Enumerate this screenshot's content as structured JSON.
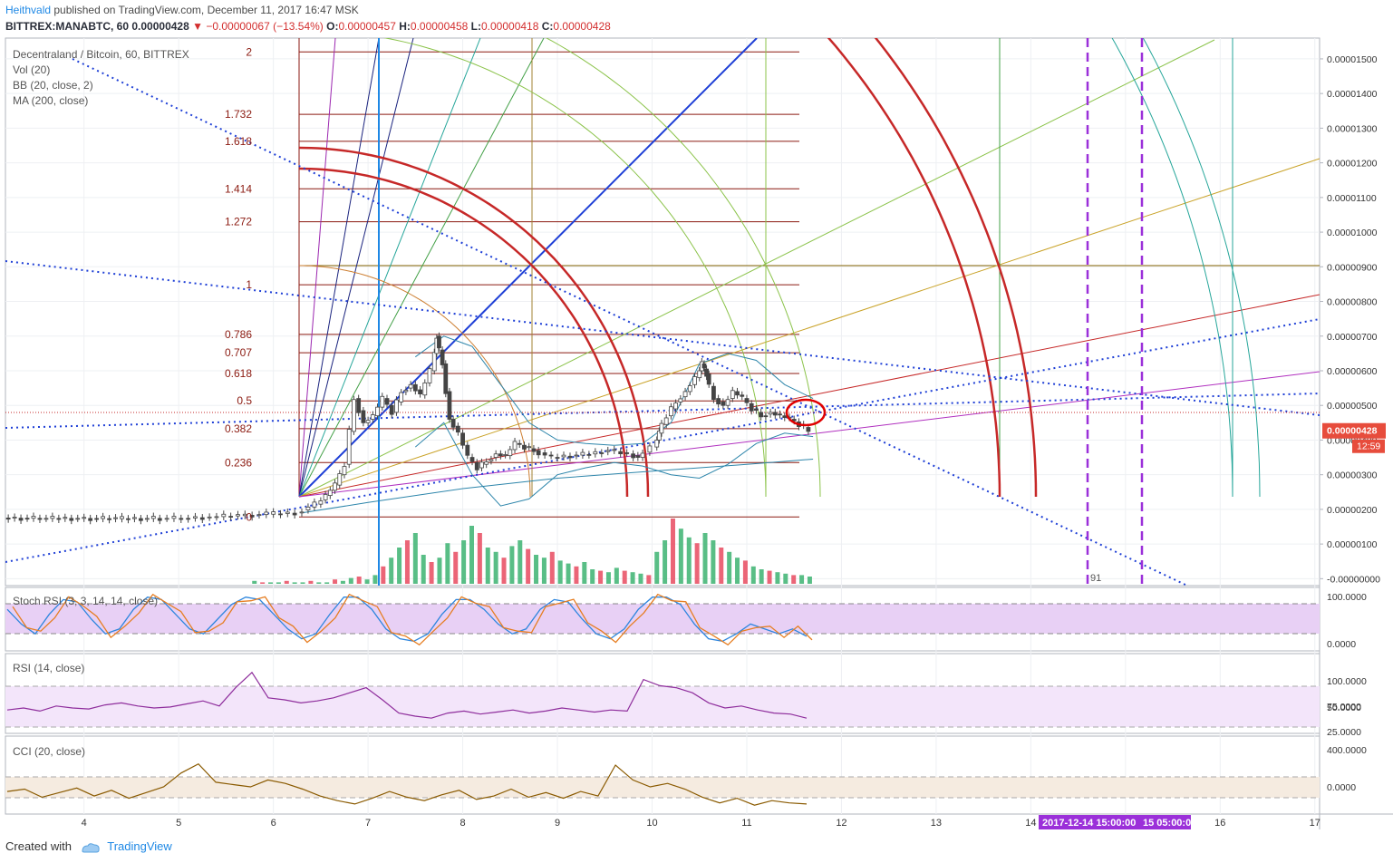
{
  "header": {
    "author": "Heithvald",
    "published": "published on TradingView.com, December 11, 2017 16:47 MSK",
    "symbol": "BITTREX:MANABTC, 60",
    "last": "0.00000428",
    "change": "−0.00000067 (−13.54%)",
    "o_label": "O:",
    "o": "0.00000457",
    "h_label": "H:",
    "h": "0.00000458",
    "l_label": "L:",
    "l": "0.00000418",
    "c_label": "C:",
    "c": "0.00000428"
  },
  "legend": [
    "Decentraland / Bitcoin, 60, BITTREX",
    "Vol (20)",
    "BB (20, close, 2)",
    "MA (200, close)"
  ],
  "price_badge": {
    "value": "0.00000428",
    "countdown": "12:59"
  },
  "fib_levels": [
    {
      "label": "2",
      "value": 1520
    },
    {
      "label": "1.732",
      "value": 1340
    },
    {
      "label": "1.618",
      "value": 1262
    },
    {
      "label": "1.414",
      "value": 1125
    },
    {
      "label": "1.272",
      "value": 1030
    },
    {
      "label": "1",
      "value": 848
    },
    {
      "label": "0.786",
      "value": 705
    },
    {
      "label": "0.707",
      "value": 652
    },
    {
      "label": "0.618",
      "value": 592
    },
    {
      "label": "0.5",
      "value": 513
    },
    {
      "label": "0.382",
      "value": 433
    },
    {
      "label": "0.236",
      "value": 335
    },
    {
      "label": "0",
      "value": 178
    }
  ],
  "panes": {
    "stoch": {
      "label": "Stoch RSI (3, 3, 14, 14, close)",
      "ticks": [
        "100.0000",
        "0.0000"
      ]
    },
    "rsi": {
      "label": "RSI (14, close)",
      "ticks": [
        "100.0000",
        "75.0000",
        "50.0000",
        "25.0000"
      ]
    },
    "cci": {
      "label": "CCI (20, close)",
      "ticks": [
        "400.0000",
        "0.0000"
      ]
    }
  },
  "time_labels": {
    "vline_label": "91",
    "date1": "2017-12-14 15:00:00",
    "date2": "15 05:00:00"
  },
  "footer": {
    "created": "Created with",
    "brand": "TradingView"
  },
  "chart_data": {
    "type": "candlestick",
    "title": "Decentraland / Bitcoin, 60, BITTREX",
    "x_ticks": [
      "4",
      "5",
      "6",
      "7",
      "8",
      "9",
      "10",
      "11",
      "12",
      "13",
      "14",
      "15",
      "16",
      "17"
    ],
    "x_tick_days": [
      4,
      5,
      6,
      7,
      8,
      9,
      10,
      11,
      12,
      13,
      14,
      15,
      16,
      17
    ],
    "y_ticks": [
      "0.00001500",
      "0.00001400",
      "0.00001300",
      "0.00001200",
      "0.00001100",
      "0.00001000",
      "0.00000900",
      "0.00000800",
      "0.00000700",
      "0.00000600",
      "0.00000500",
      "0.00000400",
      "0.00000300",
      "0.00000200",
      "0.00000100",
      "-0.00000000"
    ],
    "y_ticks_value": [
      1500,
      1400,
      1300,
      1200,
      1100,
      1000,
      900,
      800,
      700,
      600,
      500,
      400,
      300,
      200,
      100,
      0
    ],
    "y_unit": "1e-8 BTC",
    "ylim": [
      -20,
      1560
    ],
    "xlim": [
      3.17,
      17.05
    ],
    "price_path": [
      [
        3.2,
        175
      ],
      [
        3.6,
        174
      ],
      [
        4.0,
        174
      ],
      [
        4.4,
        173
      ],
      [
        4.8,
        174
      ],
      [
        5.1,
        174
      ],
      [
        5.4,
        178
      ],
      [
        5.7,
        182
      ],
      [
        6.0,
        186
      ],
      [
        6.3,
        190
      ],
      [
        6.5,
        215
      ],
      [
        6.6,
        240
      ],
      [
        6.7,
        270
      ],
      [
        6.8,
        330
      ],
      [
        6.9,
        520
      ],
      [
        7.0,
        450
      ],
      [
        7.1,
        470
      ],
      [
        7.2,
        520
      ],
      [
        7.3,
        480
      ],
      [
        7.4,
        540
      ],
      [
        7.5,
        560
      ],
      [
        7.6,
        530
      ],
      [
        7.7,
        600
      ],
      [
        7.75,
        700
      ],
      [
        7.82,
        620
      ],
      [
        7.9,
        460
      ],
      [
        8.0,
        420
      ],
      [
        8.1,
        350
      ],
      [
        8.2,
        320
      ],
      [
        8.3,
        340
      ],
      [
        8.4,
        360
      ],
      [
        8.5,
        355
      ],
      [
        8.6,
        390
      ],
      [
        8.7,
        380
      ],
      [
        8.8,
        370
      ],
      [
        9.0,
        350
      ],
      [
        9.2,
        355
      ],
      [
        9.4,
        360
      ],
      [
        9.6,
        370
      ],
      [
        9.8,
        360
      ],
      [
        9.9,
        350
      ],
      [
        10.05,
        380
      ],
      [
        10.1,
        420
      ],
      [
        10.2,
        470
      ],
      [
        10.3,
        510
      ],
      [
        10.4,
        540
      ],
      [
        10.5,
        580
      ],
      [
        10.55,
        620
      ],
      [
        10.6,
        590
      ],
      [
        10.7,
        520
      ],
      [
        10.8,
        500
      ],
      [
        10.9,
        540
      ],
      [
        11.0,
        520
      ],
      [
        11.1,
        490
      ],
      [
        11.2,
        470
      ],
      [
        11.3,
        480
      ],
      [
        11.4,
        470
      ],
      [
        11.5,
        460
      ],
      [
        11.6,
        445
      ],
      [
        11.7,
        428
      ]
    ],
    "bb_upper": [
      [
        7.5,
        640
      ],
      [
        7.8,
        700
      ],
      [
        8.1,
        670
      ],
      [
        8.4,
        560
      ],
      [
        8.7,
        450
      ],
      [
        9.0,
        400
      ],
      [
        9.3,
        390
      ],
      [
        9.6,
        385
      ],
      [
        9.9,
        390
      ],
      [
        10.2,
        450
      ],
      [
        10.5,
        620
      ],
      [
        10.8,
        650
      ],
      [
        11.1,
        630
      ],
      [
        11.4,
        560
      ],
      [
        11.7,
        520
      ]
    ],
    "bb_lower": [
      [
        7.5,
        380
      ],
      [
        7.8,
        450
      ],
      [
        8.1,
        300
      ],
      [
        8.4,
        210
      ],
      [
        8.7,
        230
      ],
      [
        9.0,
        300
      ],
      [
        9.3,
        320
      ],
      [
        9.6,
        335
      ],
      [
        9.9,
        325
      ],
      [
        10.2,
        300
      ],
      [
        10.5,
        290
      ],
      [
        10.8,
        330
      ],
      [
        11.1,
        390
      ],
      [
        11.4,
        420
      ],
      [
        11.7,
        410
      ]
    ],
    "ma200": [
      [
        6.3,
        190
      ],
      [
        7.0,
        220
      ],
      [
        8.0,
        260
      ],
      [
        9.0,
        290
      ],
      [
        10.0,
        310
      ],
      [
        11.0,
        330
      ],
      [
        11.7,
        345
      ]
    ],
    "volume": [
      2,
      1,
      1,
      1,
      2,
      1,
      1,
      2,
      1,
      1,
      3,
      2,
      4,
      5,
      3,
      6,
      12,
      18,
      25,
      30,
      35,
      20,
      15,
      18,
      28,
      22,
      30,
      40,
      35,
      25,
      22,
      18,
      26,
      30,
      24,
      20,
      18,
      22,
      16,
      14,
      12,
      15,
      10,
      9,
      8,
      11,
      9,
      8,
      7,
      6,
      22,
      30,
      45,
      38,
      32,
      28,
      35,
      30,
      25,
      22,
      18,
      16,
      12,
      10,
      9,
      8,
      7,
      6,
      6,
      5
    ],
    "stoch_rsi": [
      70,
      40,
      20,
      60,
      90,
      85,
      50,
      20,
      30,
      70,
      95,
      90,
      60,
      30,
      20,
      50,
      80,
      95,
      90,
      60,
      30,
      10,
      20,
      60,
      95,
      95,
      70,
      30,
      10,
      5,
      20,
      60,
      90,
      90,
      70,
      40,
      20,
      30,
      70,
      90,
      85,
      50,
      20,
      10,
      30,
      70,
      95,
      95,
      80,
      40,
      10,
      5,
      20,
      40,
      30,
      20,
      30,
      15
    ],
    "rsi": [
      48,
      50,
      47,
      52,
      50,
      49,
      53,
      55,
      52,
      50,
      51,
      54,
      57,
      52,
      70,
      85,
      60,
      58,
      55,
      57,
      60,
      65,
      70,
      58,
      45,
      42,
      40,
      45,
      47,
      44,
      46,
      48,
      45,
      47,
      50,
      48,
      46,
      48,
      47,
      78,
      72,
      70,
      65,
      55,
      50,
      52,
      48,
      45,
      44,
      40
    ],
    "cci": [
      20,
      40,
      -30,
      10,
      50,
      -20,
      30,
      -40,
      10,
      60,
      180,
      260,
      100,
      80,
      60,
      120,
      90,
      40,
      -20,
      -60,
      -90,
      -40,
      20,
      -30,
      -60,
      -10,
      30,
      -50,
      -20,
      40,
      -30,
      10,
      -40,
      20,
      -20,
      250,
      120,
      60,
      90,
      40,
      -30,
      -80,
      -40,
      -100,
      -60,
      -80,
      -90
    ]
  }
}
